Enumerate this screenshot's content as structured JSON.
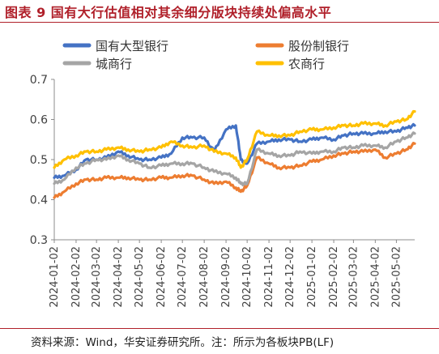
{
  "figure": {
    "title": "图表 9 国有大行估值相对其余细分版块持续处偏高水平",
    "source_note": "资料来源：Wind，华安证券研究所。注：所示为各板块PB(LF)"
  },
  "chart_data": {
    "type": "line",
    "title": "",
    "xlabel": "",
    "ylabel": "",
    "ylim": [
      0.3,
      0.7
    ],
    "yticks": [
      0.3,
      0.4,
      0.5,
      0.6,
      0.7
    ],
    "ytick_labels": [
      "0.3",
      "0.4",
      "0.5",
      "0.6",
      "0.7"
    ],
    "grid": false,
    "legend_position": "top",
    "x_tick_labels": [
      "2024-01-02",
      "2024-02-02",
      "2024-03-02",
      "2024-04-02",
      "2024-05-02",
      "2024-06-02",
      "2024-07-02",
      "2024-08-02",
      "2024-09-02",
      "2024-10-02",
      "2024-11-02",
      "2024-12-02",
      "2025-01-02",
      "2025-02-02",
      "2025-03-02",
      "2025-04-02",
      "2025-05-02"
    ],
    "x": [
      "2024-01-02",
      "2024-01-16",
      "2024-02-02",
      "2024-02-16",
      "2024-03-02",
      "2024-03-16",
      "2024-04-02",
      "2024-04-16",
      "2024-05-02",
      "2024-05-16",
      "2024-06-02",
      "2024-06-16",
      "2024-07-02",
      "2024-07-16",
      "2024-08-02",
      "2024-08-16",
      "2024-09-02",
      "2024-09-16",
      "2024-09-23",
      "2024-10-02",
      "2024-10-16",
      "2024-11-02",
      "2024-11-16",
      "2024-12-02",
      "2024-12-16",
      "2025-01-02",
      "2025-01-16",
      "2025-02-02",
      "2025-02-16",
      "2025-03-02",
      "2025-03-16",
      "2025-04-02",
      "2025-04-16",
      "2025-05-02",
      "2025-05-16",
      "2025-05-28"
    ],
    "series": [
      {
        "name": "国有大型银行",
        "color": "#4472C4",
        "values": [
          0.455,
          0.46,
          0.475,
          0.5,
          0.5,
          0.505,
          0.52,
          0.51,
          0.5,
          0.5,
          0.505,
          0.515,
          0.555,
          0.555,
          0.555,
          0.52,
          0.575,
          0.585,
          0.5,
          0.49,
          0.54,
          0.545,
          0.55,
          0.55,
          0.545,
          0.55,
          0.555,
          0.55,
          0.56,
          0.565,
          0.565,
          0.565,
          0.57,
          0.57,
          0.58,
          0.585
        ]
      },
      {
        "name": "股份制银行",
        "color": "#ED7D31",
        "values": [
          0.405,
          0.42,
          0.44,
          0.45,
          0.45,
          0.455,
          0.455,
          0.455,
          0.45,
          0.45,
          0.455,
          0.455,
          0.46,
          0.46,
          0.45,
          0.44,
          0.445,
          0.43,
          0.42,
          0.435,
          0.505,
          0.49,
          0.48,
          0.48,
          0.485,
          0.495,
          0.5,
          0.51,
          0.515,
          0.52,
          0.52,
          0.525,
          0.505,
          0.515,
          0.525,
          0.54
        ]
      },
      {
        "name": "城商行",
        "color": "#A5A5A5",
        "values": [
          0.44,
          0.45,
          0.48,
          0.49,
          0.5,
          0.5,
          0.51,
          0.5,
          0.49,
          0.48,
          0.485,
          0.49,
          0.49,
          0.49,
          0.48,
          0.47,
          0.465,
          0.455,
          0.44,
          0.44,
          0.525,
          0.515,
          0.51,
          0.51,
          0.52,
          0.515,
          0.52,
          0.52,
          0.53,
          0.53,
          0.535,
          0.535,
          0.53,
          0.545,
          0.555,
          0.565
        ]
      },
      {
        "name": "农商行",
        "color": "#FFC000",
        "values": [
          0.48,
          0.5,
          0.51,
          0.52,
          0.52,
          0.525,
          0.53,
          0.525,
          0.52,
          0.525,
          0.53,
          0.545,
          0.535,
          0.53,
          0.535,
          0.52,
          0.515,
          0.505,
          0.48,
          0.5,
          0.57,
          0.56,
          0.56,
          0.56,
          0.57,
          0.575,
          0.575,
          0.58,
          0.585,
          0.585,
          0.59,
          0.59,
          0.585,
          0.595,
          0.6,
          0.62
        ]
      }
    ]
  }
}
